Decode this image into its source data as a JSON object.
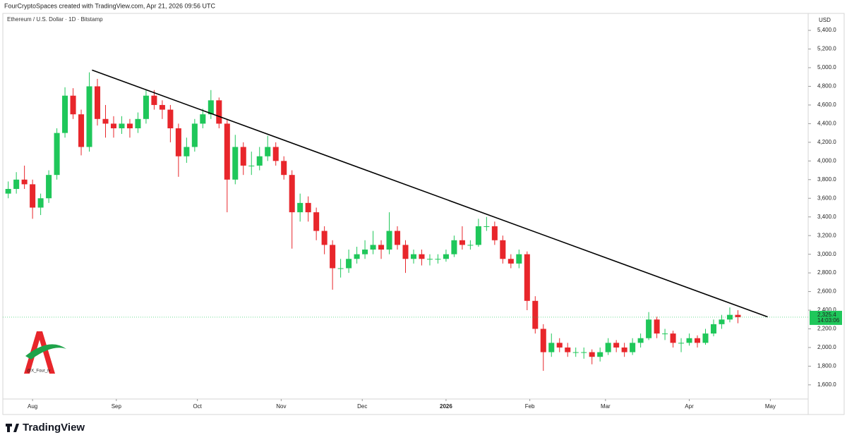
{
  "header": "FourCryptoSpaces created with TradingView.com, Apr 21, 2026 09:56 UTC",
  "footer": "TradingView",
  "watermark": "@X_Four_iv",
  "chart_data": {
    "type": "candlestick",
    "title": "Ethereum / U.S. Dollar · 1D · Bitstamp",
    "y_axis_label": "USD",
    "up_color": "#1fc75a",
    "down_color": "#e8262b",
    "x": [
      0,
      3,
      6,
      9,
      12,
      15,
      18,
      21,
      24,
      27,
      30,
      33,
      36,
      39,
      42,
      45,
      48,
      51,
      54,
      57,
      60,
      63,
      66,
      69,
      72,
      75,
      78,
      81,
      84,
      87,
      90,
      93,
      96,
      99,
      102,
      105,
      108,
      111,
      114,
      117,
      120,
      123,
      126,
      129,
      132,
      135,
      138,
      141,
      144,
      147,
      150,
      153,
      156,
      159,
      162,
      165,
      168,
      171,
      174,
      177,
      180,
      183,
      186,
      189,
      192,
      195,
      198,
      201,
      204,
      207,
      210,
      213,
      216,
      219,
      222,
      225,
      228,
      231,
      234,
      237,
      240,
      243,
      246,
      249,
      252,
      255,
      258,
      261,
      264,
      267,
      270
    ],
    "open": [
      3650,
      3700,
      3800,
      3750,
      3500,
      3600,
      3850,
      4300,
      4700,
      4500,
      4150,
      4800,
      4450,
      4400,
      4350,
      4400,
      4350,
      4450,
      4700,
      4600,
      4550,
      4350,
      4050,
      4150,
      4400,
      4500,
      4650,
      4400,
      3800,
      4150,
      3950,
      3950,
      4050,
      4150,
      4000,
      3850,
      3450,
      3550,
      3450,
      3250,
      3100,
      2850,
      2850,
      2950,
      3000,
      3050,
      3100,
      3050,
      3250,
      3100,
      2950,
      3000,
      2950,
      2950,
      2950,
      3000,
      3150,
      3100,
      3100,
      3300,
      3300,
      3150,
      2950,
      2900,
      3000,
      2500,
      2200,
      1950,
      2050,
      2000,
      1950,
      1950,
      1950,
      1900,
      1950,
      2050,
      2000,
      1950,
      2050,
      2100,
      2300,
      2150,
      2150,
      2050,
      2050,
      2100,
      2050,
      2150,
      2250,
      2300,
      2350
    ],
    "high": [
      3780,
      3880,
      3950,
      3800,
      3650,
      3900,
      4350,
      4790,
      4780,
      4550,
      4950,
      4880,
      4600,
      4480,
      4480,
      4450,
      4520,
      4770,
      4760,
      4650,
      4600,
      4400,
      4250,
      4450,
      4560,
      4760,
      4680,
      4450,
      4280,
      4200,
      4100,
      4150,
      4270,
      4200,
      4050,
      3900,
      3650,
      3620,
      3500,
      3300,
      3150,
      2950,
      3050,
      3080,
      3150,
      3250,
      3150,
      3450,
      3300,
      3150,
      3050,
      3050,
      3000,
      3000,
      3050,
      3200,
      3300,
      3150,
      3380,
      3400,
      3350,
      3200,
      3000,
      3050,
      3030,
      2550,
      2250,
      2150,
      2100,
      2050,
      2000,
      2000,
      1980,
      2000,
      2100,
      2080,
      2050,
      2100,
      2150,
      2380,
      2330,
      2200,
      2180,
      2100,
      2150,
      2130,
      2200,
      2300,
      2350,
      2430,
      2400
    ],
    "low": [
      3600,
      3650,
      3700,
      3380,
      3420,
      3550,
      3800,
      4250,
      4450,
      4060,
      4100,
      4380,
      4250,
      4250,
      4290,
      4250,
      4300,
      4400,
      4550,
      4450,
      4200,
      3830,
      3980,
      4100,
      4350,
      4450,
      4350,
      3450,
      3750,
      3850,
      3850,
      3900,
      4000,
      3950,
      3800,
      3060,
      3350,
      3350,
      3150,
      3000,
      2620,
      2750,
      2800,
      2900,
      2950,
      3000,
      2950,
      3000,
      3050,
      2800,
      2900,
      2880,
      2880,
      2900,
      2920,
      2970,
      3050,
      3050,
      3080,
      3250,
      3100,
      2900,
      2850,
      2850,
      2400,
      2150,
      1750,
      1900,
      1950,
      1900,
      1900,
      1880,
      1820,
      1850,
      1920,
      1950,
      1900,
      1920,
      2000,
      2080,
      2100,
      2080,
      2000,
      1950,
      2020,
      2000,
      2030,
      2120,
      2200,
      2270,
      2260
    ],
    "close": [
      3700,
      3800,
      3750,
      3500,
      3600,
      3850,
      4300,
      4700,
      4500,
      4150,
      4800,
      4450,
      4400,
      4350,
      4400,
      4350,
      4450,
      4700,
      4600,
      4550,
      4350,
      4050,
      4150,
      4400,
      4500,
      4650,
      4400,
      3800,
      4150,
      3950,
      3950,
      4050,
      4150,
      4000,
      3850,
      3450,
      3550,
      3450,
      3250,
      3100,
      2850,
      2850,
      2950,
      3000,
      3050,
      3100,
      3050,
      3250,
      3100,
      2950,
      3000,
      2950,
      2950,
      2950,
      3000,
      3150,
      3100,
      3100,
      3300,
      3300,
      3150,
      2950,
      2900,
      3000,
      2500,
      2200,
      1950,
      2050,
      2000,
      1950,
      1950,
      1950,
      1900,
      1950,
      2050,
      2000,
      1950,
      2050,
      2100,
      2300,
      2150,
      2150,
      2050,
      2050,
      2100,
      2050,
      2150,
      2250,
      2300,
      2350,
      2325.4
    ],
    "trendline": {
      "x": [
        31,
        281
      ],
      "y": [
        4975,
        2328
      ],
      "color": "#000000"
    },
    "last_price": {
      "value": 2325.4,
      "label": "2,325.4"
    },
    "countdown": "14:03:06",
    "xlim": [
      -2,
      296
    ],
    "xticks": [
      {
        "value": 9,
        "label": "Aug"
      },
      {
        "value": 40,
        "label": "Sep"
      },
      {
        "value": 70,
        "label": "Oct"
      },
      {
        "value": 101,
        "label": "Nov"
      },
      {
        "value": 131,
        "label": "Dec"
      },
      {
        "value": 162,
        "label": "2026"
      },
      {
        "value": 193,
        "label": "Feb"
      },
      {
        "value": 221,
        "label": "Mar"
      },
      {
        "value": 252,
        "label": "Apr"
      },
      {
        "value": 282,
        "label": "May"
      }
    ],
    "ylim": [
      1448,
      5582
    ],
    "yticks": [
      {
        "value": 1600,
        "label": "1,600.0"
      },
      {
        "value": 1800,
        "label": "1,800.0"
      },
      {
        "value": 2000,
        "label": "2,000.0"
      },
      {
        "value": 2200,
        "label": "2,200.0"
      },
      {
        "value": 2400,
        "label": "2,400.0"
      },
      {
        "value": 2600,
        "label": "2,600.0"
      },
      {
        "value": 2800,
        "label": "2,800.0"
      },
      {
        "value": 3000,
        "label": "3,000.0"
      },
      {
        "value": 3200,
        "label": "3,200.0"
      },
      {
        "value": 3400,
        "label": "3,400.0"
      },
      {
        "value": 3600,
        "label": "3,600.0"
      },
      {
        "value": 3800,
        "label": "3,800.0"
      },
      {
        "value": 4000,
        "label": "4,000.0"
      },
      {
        "value": 4200,
        "label": "4,200.0"
      },
      {
        "value": 4400,
        "label": "4,400.0"
      },
      {
        "value": 4600,
        "label": "4,600.0"
      },
      {
        "value": 4800,
        "label": "4,800.0"
      },
      {
        "value": 5000,
        "label": "5,000.0"
      },
      {
        "value": 5200,
        "label": "5,200.0"
      },
      {
        "value": 5400,
        "label": "5,400.0"
      }
    ]
  }
}
